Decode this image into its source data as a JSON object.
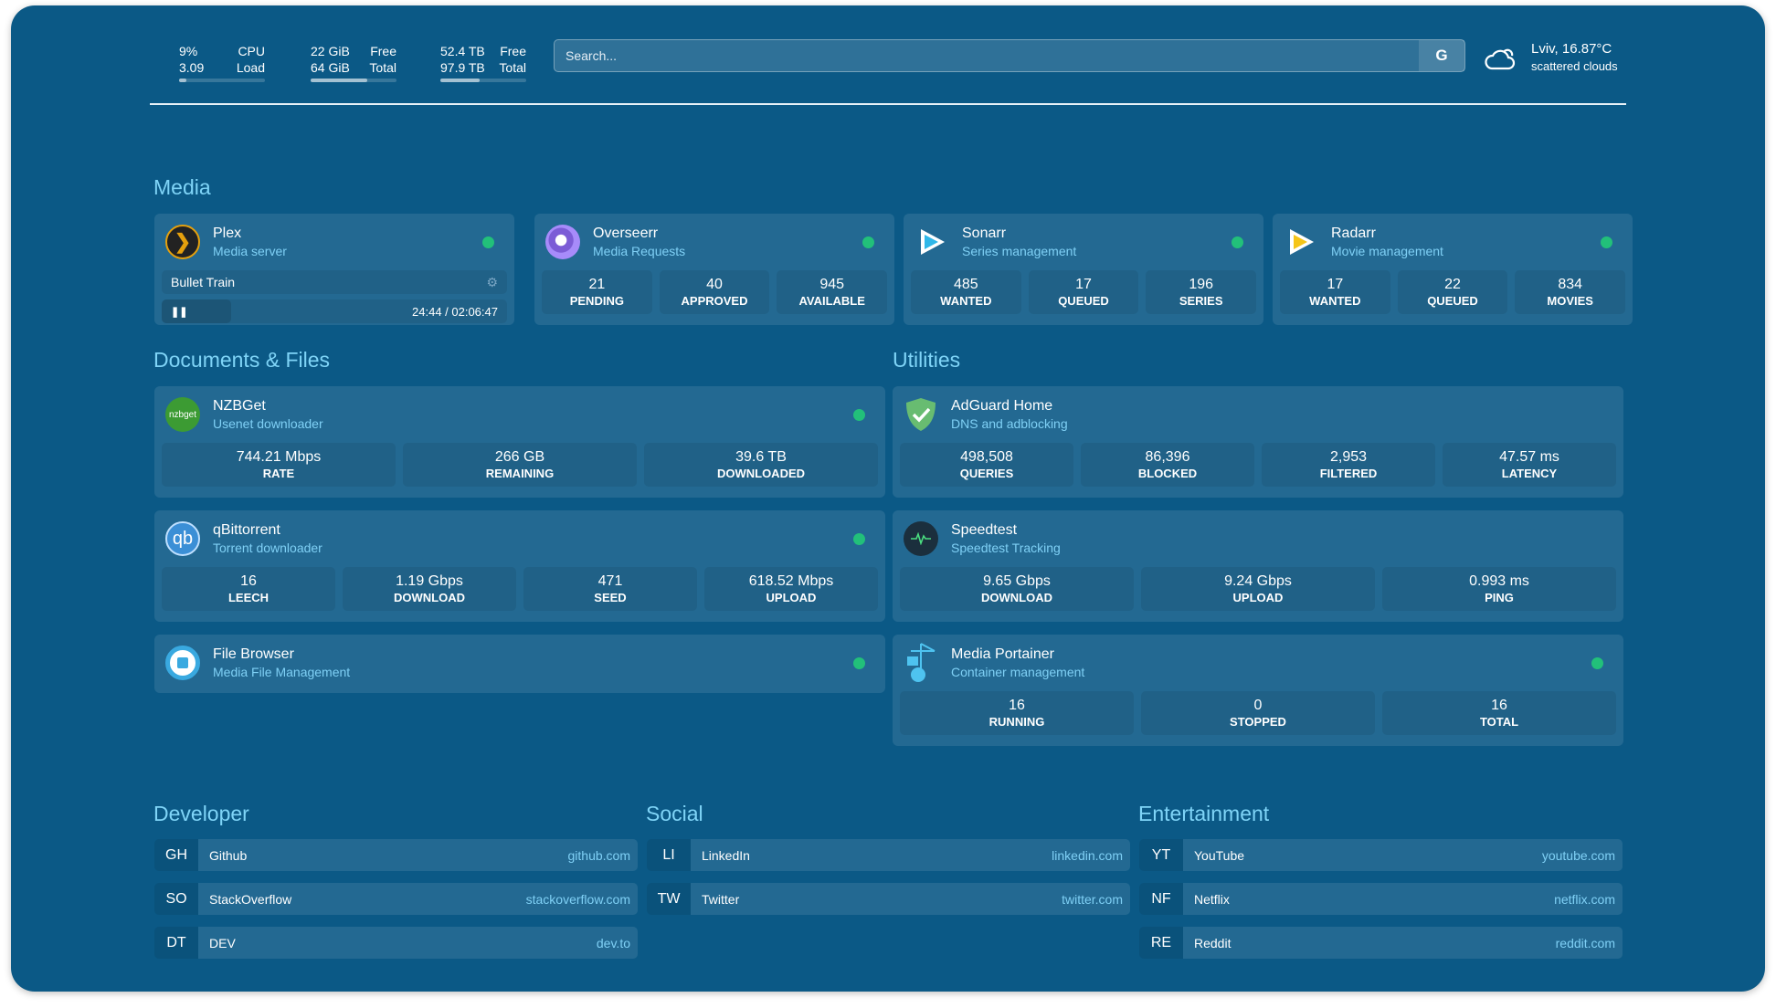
{
  "resources": [
    {
      "icon": "cpu-icon",
      "r1": [
        "9%",
        "CPU"
      ],
      "r2": [
        "3.09",
        "Load"
      ],
      "percent": 9
    },
    {
      "icon": "memory-icon",
      "r1": [
        "22 GiB",
        "Free"
      ],
      "r2": [
        "64 GiB",
        "Total"
      ],
      "percent": 66
    },
    {
      "icon": "disk-icon",
      "r1": [
        "52.4 TB",
        "Free"
      ],
      "r2": [
        "97.9 TB",
        "Total"
      ],
      "percent": 46
    }
  ],
  "search": {
    "placeholder": "Search...",
    "provider": "G"
  },
  "weather": {
    "icon": "cloud-icon",
    "location": "Lviv, 16.87°C",
    "condition": "scattered clouds"
  },
  "status_color": "#22c07a",
  "sections": {
    "media": "Media",
    "docs": "Documents & Files",
    "utilities": "Utilities",
    "developer": "Developer",
    "social": "Social",
    "entertainment": "Entertainment"
  },
  "plex": {
    "title": "Plex",
    "subtitle": "Media server",
    "now_playing": "Bullet Train",
    "time": "24:44 / 02:06:47",
    "progress_percent": 20
  },
  "cards": [
    {
      "id": "overseerr",
      "title": "Overseerr",
      "subtitle": "Media Requests",
      "icon": "overseerr-icon",
      "stats": [
        [
          "21",
          "PENDING"
        ],
        [
          "40",
          "APPROVED"
        ],
        [
          "945",
          "AVAILABLE"
        ]
      ]
    },
    {
      "id": "sonarr",
      "title": "Sonarr",
      "subtitle": "Series management",
      "icon": "sonarr-icon",
      "stats": [
        [
          "485",
          "WANTED"
        ],
        [
          "17",
          "QUEUED"
        ],
        [
          "196",
          "SERIES"
        ]
      ]
    },
    {
      "id": "radarr",
      "title": "Radarr",
      "subtitle": "Movie management",
      "icon": "radarr-icon",
      "stats": [
        [
          "17",
          "WANTED"
        ],
        [
          "22",
          "QUEUED"
        ],
        [
          "834",
          "MOVIES"
        ]
      ]
    },
    {
      "id": "nzbget",
      "title": "NZBGet",
      "subtitle": "Usenet downloader",
      "icon": "nzbget-icon",
      "icon_text": "nzbget",
      "stats": [
        [
          "744.21 Mbps",
          "RATE"
        ],
        [
          "266 GB",
          "REMAINING"
        ],
        [
          "39.6 TB",
          "DOWNLOADED"
        ]
      ]
    },
    {
      "id": "qbittorrent",
      "title": "qBittorrent",
      "subtitle": "Torrent downloader",
      "icon": "qbittorrent-icon",
      "icon_text": "qb",
      "stats": [
        [
          "16",
          "LEECH"
        ],
        [
          "1.19 Gbps",
          "DOWNLOAD"
        ],
        [
          "471",
          "SEED"
        ],
        [
          "618.52 Mbps",
          "UPLOAD"
        ]
      ]
    },
    {
      "id": "filebrowser",
      "title": "File Browser",
      "subtitle": "Media File Management",
      "icon": "file-browser-icon",
      "stats": []
    },
    {
      "id": "adguard",
      "title": "AdGuard Home",
      "subtitle": "DNS and adblocking",
      "icon": "adguard-shield-icon",
      "stats": [
        [
          "498,508",
          "QUERIES"
        ],
        [
          "86,396",
          "BLOCKED"
        ],
        [
          "2,953",
          "FILTERED"
        ],
        [
          "47.57 ms",
          "LATENCY"
        ]
      ]
    },
    {
      "id": "speedtest",
      "title": "Speedtest",
      "subtitle": "Speedtest Tracking",
      "icon": "speedtest-icon",
      "stats": [
        [
          "9.65 Gbps",
          "DOWNLOAD"
        ],
        [
          "9.24 Gbps",
          "UPLOAD"
        ],
        [
          "0.993 ms",
          "PING"
        ]
      ]
    },
    {
      "id": "portainer",
      "title": "Media Portainer",
      "subtitle": "Container management",
      "icon": "portainer-icon",
      "stats": [
        [
          "16",
          "RUNNING"
        ],
        [
          "0",
          "STOPPED"
        ],
        [
          "16",
          "TOTAL"
        ]
      ]
    }
  ],
  "bookmarks": [
    [
      [
        "GH",
        "Github",
        "github.com"
      ],
      [
        "SO",
        "StackOverflow",
        "stackoverflow.com"
      ],
      [
        "DT",
        "DEV",
        "dev.to"
      ]
    ],
    [
      [
        "LI",
        "LinkedIn",
        "linkedin.com"
      ],
      [
        "TW",
        "Twitter",
        "twitter.com"
      ]
    ],
    [
      [
        "YT",
        "YouTube",
        "youtube.com"
      ],
      [
        "NF",
        "Netflix",
        "netflix.com"
      ],
      [
        "RE",
        "Reddit",
        "reddit.com"
      ]
    ]
  ]
}
